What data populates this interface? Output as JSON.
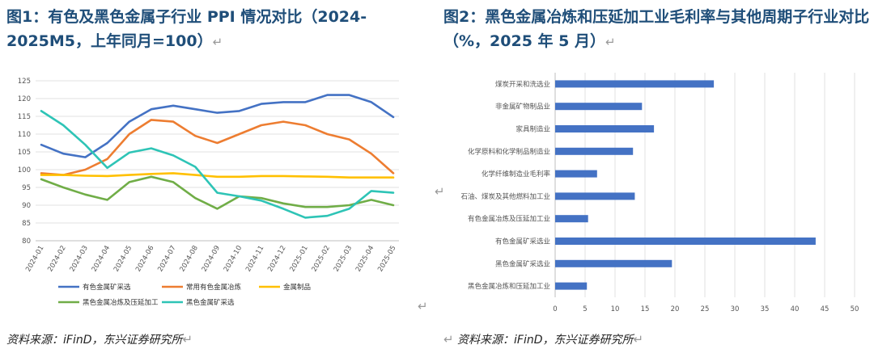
{
  "left": {
    "title": "图1：有色及黑色金属子行业 PPI 情况对比（2024-2025M5，上年同月=100）",
    "source": "资料来源：iFinD，东兴证券研究所",
    "return_mark": "↵"
  },
  "right": {
    "title": "图2：黑色金属冶炼和压延加工业毛利率与其他周期子行业对比（%，2025 年 5 月）",
    "source": "资料来源：iFinD，东兴证券研究所",
    "return_mark": "↵"
  },
  "colors": {
    "title": "#1f4e79",
    "series": [
      "#4472c4",
      "#ed7d31",
      "#ffc000",
      "#70ad47",
      "#2ec4b6"
    ],
    "bar": "#4472c4",
    "grid": "#d9d9d9"
  },
  "chart_data": [
    {
      "type": "line",
      "categories": [
        "2024-01",
        "2024-02",
        "2024-03",
        "2024-04",
        "2024-05",
        "2024-06",
        "2024-07",
        "2024-08",
        "2024-09",
        "2024-10",
        "2024-11",
        "2024-12",
        "2025-01",
        "2025-02",
        "2025-03",
        "2025-04",
        "2025-05"
      ],
      "ylim": [
        80,
        125
      ],
      "yticks": [
        "80",
        "85",
        "90",
        "95",
        "100",
        "105",
        "110",
        "115",
        "120",
        "125"
      ],
      "grid": true,
      "legend": "bottom",
      "series": [
        {
          "name": "有色金属矿采选",
          "values": [
            107,
            104.5,
            103.5,
            107.5,
            113.5,
            117,
            118,
            117,
            116,
            116.5,
            118.5,
            119,
            119,
            121,
            121,
            119,
            114.8
          ]
        },
        {
          "name": "常用有色金属冶炼",
          "values": [
            99,
            98.5,
            100,
            103,
            110,
            114,
            113.5,
            109.5,
            107.5,
            110,
            112.5,
            113.5,
            112.5,
            110,
            108.5,
            104.5,
            99
          ]
        },
        {
          "name": "金属制品",
          "values": [
            98.5,
            98.5,
            98.3,
            98.2,
            98.5,
            98.8,
            99,
            98.5,
            98,
            98,
            98.2,
            98.2,
            98.1,
            98,
            97.8,
            97.8,
            97.8
          ]
        },
        {
          "name": "黑色金属冶炼及压延加工",
          "values": [
            97.3,
            95,
            93,
            91.5,
            96.5,
            98,
            96.5,
            92,
            89,
            92.5,
            92,
            90.5,
            89.5,
            89.5,
            90,
            91.5,
            90
          ]
        },
        {
          "name": "黑色金属矿采选",
          "values": [
            116.5,
            112.5,
            107,
            100.5,
            104.8,
            106,
            104,
            100.8,
            93.5,
            92.5,
            91.3,
            89,
            86.5,
            87,
            89,
            94,
            93.5
          ]
        }
      ]
    },
    {
      "type": "bar",
      "orientation": "horizontal",
      "categories": [
        "煤炭开采和洗选业",
        "非金属矿物制品业",
        "家具制造业",
        "化学原料和化学制品制造业",
        "化学纤维制造业毛利率",
        "石油、煤炭及其他燃料加工业",
        "有色金属冶炼及压延加工业",
        "有色金属矿采选业",
        "黑色金属矿采选业",
        "黑色金属冶炼和压延加工业"
      ],
      "values": [
        26.5,
        14.5,
        16.5,
        13,
        7,
        13.3,
        5.5,
        43.5,
        19.5,
        5.3
      ],
      "xlim": [
        0,
        50
      ],
      "xticks": [
        "0",
        "5",
        "10",
        "15",
        "20",
        "25",
        "30",
        "35",
        "40",
        "45",
        "50"
      ],
      "grid": true
    }
  ]
}
